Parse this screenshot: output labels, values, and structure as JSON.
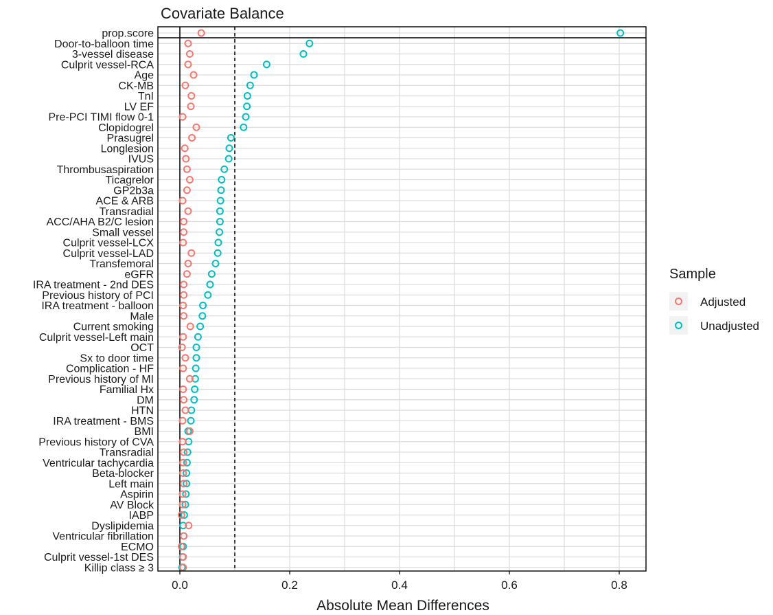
{
  "chart_data": {
    "type": "scatter",
    "title": "Covariate Balance",
    "xlabel": "Absolute Mean Differences",
    "ylabel": "",
    "xlim": [
      -0.02,
      0.845
    ],
    "x_ticks": [
      0.0,
      0.2,
      0.4,
      0.6,
      0.8
    ],
    "x_tick_labels": [
      "0.0",
      "0.2",
      "0.4",
      "0.6",
      "0.8"
    ],
    "grid": true,
    "reference_lines": [
      0.0,
      0.1
    ],
    "legend": {
      "title": "Sample",
      "position": "right",
      "entries": [
        "Adjusted",
        "Unadjusted"
      ]
    },
    "colors": {
      "Adjusted": "#F8766D",
      "Unadjusted": "#00BFC4"
    },
    "categories": [
      "prop.score",
      "Door-to-balloon time",
      "3-vessel disease",
      "Culprit vessel-RCA",
      "Age",
      "CK-MB",
      "TnI",
      "LV EF",
      "Pre-PCI TIMI flow 0-1",
      "Clopidogrel",
      "Prasugrel",
      "Longlesion",
      "IVUS",
      "Thrombusaspiration",
      "Ticagrelor",
      "GP2b3a",
      "ACE & ARB",
      "Transradial",
      "ACC/AHA B2/C lesion",
      "Small vessel",
      "Culprit vessel-LCX",
      "Culprit vessel-LAD",
      "Transfemoral",
      "eGFR",
      "IRA treatment - 2nd DES",
      "Previous history of PCI",
      "IRA treatment - balloon",
      "Male",
      "Current smoking",
      "Culprit vessel-Left main",
      "OCT",
      "Sx to door time",
      "Complication - HF",
      "Previous history of MI",
      "Familial Hx",
      "DM",
      "HTN",
      "IRA treatment - BMS",
      "BMI",
      "Previous history of CVA",
      "Transradial",
      "Ventricular tachycardia",
      "Beta-blocker",
      "Left main",
      "Aspirin",
      "AV Block",
      "IABP",
      "Dyslipidemia",
      "Ventricular fibrillation",
      "ECMO",
      "Culprit vessel-1st DES",
      "Killip class ≥ 3"
    ],
    "series": [
      {
        "name": "Adjusted",
        "values": [
          0.039,
          0.015,
          0.018,
          0.015,
          0.025,
          0.01,
          0.021,
          0.02,
          0.005,
          0.03,
          0.022,
          0.009,
          0.011,
          0.013,
          0.018,
          0.013,
          0.005,
          0.015,
          0.007,
          0.007,
          0.006,
          0.021,
          0.015,
          0.013,
          0.007,
          0.007,
          0.006,
          0.007,
          0.019,
          0.006,
          0.004,
          0.01,
          0.006,
          0.018,
          0.006,
          0.007,
          0.01,
          0.005,
          0.018,
          0.005,
          0.007,
          0.006,
          0.006,
          0.007,
          0.005,
          0.005,
          0.003,
          0.016,
          0.007,
          0.003,
          0.006,
          0.006
        ]
      },
      {
        "name": "Unadjusted",
        "values": [
          0.802,
          0.236,
          0.225,
          0.158,
          0.135,
          0.128,
          0.123,
          0.122,
          0.12,
          0.116,
          0.093,
          0.09,
          0.089,
          0.081,
          0.076,
          0.075,
          0.074,
          0.073,
          0.073,
          0.072,
          0.07,
          0.069,
          0.065,
          0.058,
          0.055,
          0.051,
          0.042,
          0.041,
          0.037,
          0.033,
          0.03,
          0.03,
          0.029,
          0.028,
          0.027,
          0.026,
          0.021,
          0.02,
          0.015,
          0.016,
          0.014,
          0.013,
          0.012,
          0.012,
          0.011,
          0.01,
          0.008,
          0.006,
          0.007,
          0.006,
          0.005,
          0.004
        ]
      }
    ]
  }
}
